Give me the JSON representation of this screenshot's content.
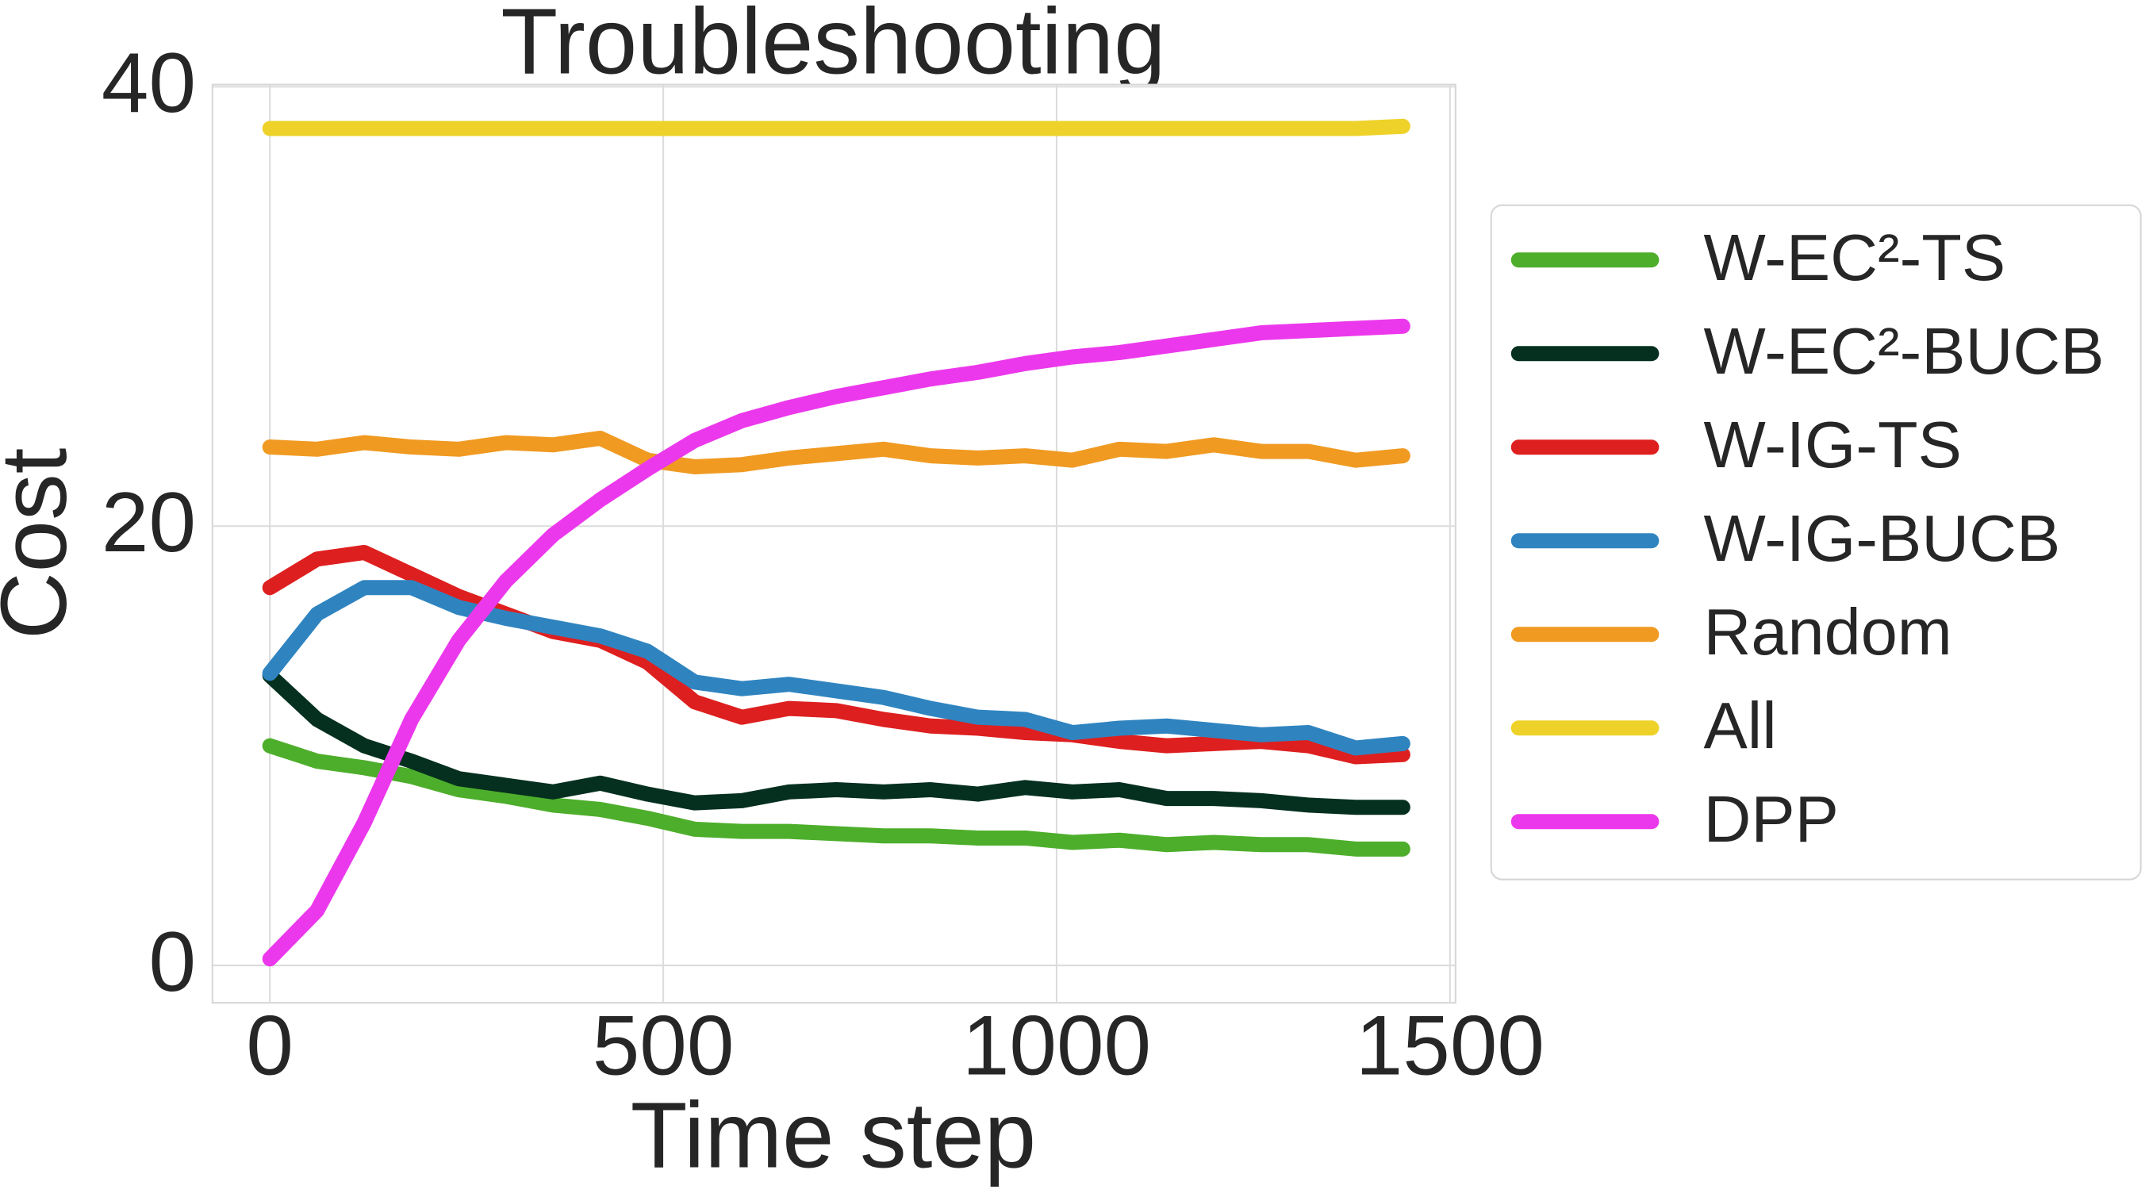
{
  "chart_data": {
    "type": "line",
    "title": "Troubleshooting",
    "x_label": "Time step",
    "y_label": "Cost",
    "x": [
      0,
      60,
      120,
      180,
      240,
      300,
      360,
      420,
      480,
      540,
      600,
      660,
      720,
      780,
      840,
      900,
      960,
      1020,
      1080,
      1140,
      1200,
      1260,
      1320,
      1380,
      1440
    ],
    "series": [
      {
        "name": "W-EC²-TS",
        "color": "#4dae2b",
        "values": [
          10.0,
          9.3,
          9.0,
          8.6,
          8.0,
          7.7,
          7.3,
          7.1,
          6.7,
          6.2,
          6.1,
          6.1,
          6.0,
          5.9,
          5.9,
          5.8,
          5.8,
          5.6,
          5.7,
          5.5,
          5.6,
          5.5,
          5.5,
          5.3,
          5.3
        ]
      },
      {
        "name": "W-EC²-BUCB",
        "color": "#05301f",
        "values": [
          13.2,
          11.2,
          10.0,
          9.3,
          8.5,
          8.2,
          7.9,
          8.3,
          7.8,
          7.4,
          7.5,
          7.9,
          8.0,
          7.9,
          8.0,
          7.8,
          8.1,
          7.9,
          8.0,
          7.6,
          7.6,
          7.5,
          7.3,
          7.2,
          7.2
        ]
      },
      {
        "name": "W-IG-TS",
        "color": "#de1f1f",
        "values": [
          17.2,
          18.5,
          18.8,
          17.8,
          16.8,
          16.0,
          15.2,
          14.8,
          13.8,
          12.0,
          11.3,
          11.7,
          11.6,
          11.2,
          10.9,
          10.8,
          10.6,
          10.5,
          10.2,
          10.0,
          10.1,
          10.2,
          10.0,
          9.5,
          9.6
        ]
      },
      {
        "name": "W-IG-BUCB",
        "color": "#2f84c0",
        "values": [
          13.3,
          16.0,
          17.2,
          17.2,
          16.3,
          15.8,
          15.4,
          15.0,
          14.3,
          12.9,
          12.6,
          12.8,
          12.5,
          12.2,
          11.7,
          11.3,
          11.2,
          10.6,
          10.8,
          10.9,
          10.7,
          10.5,
          10.6,
          9.9,
          10.1
        ]
      },
      {
        "name": "Random",
        "color": "#f09a22",
        "values": [
          23.6,
          23.5,
          23.8,
          23.6,
          23.5,
          23.8,
          23.7,
          24.0,
          23.0,
          22.7,
          22.8,
          23.1,
          23.3,
          23.5,
          23.2,
          23.1,
          23.2,
          23.0,
          23.5,
          23.4,
          23.7,
          23.4,
          23.4,
          23.0,
          23.2
        ]
      },
      {
        "name": "All",
        "color": "#eed22a",
        "values": [
          38.1,
          38.1,
          38.1,
          38.1,
          38.1,
          38.1,
          38.1,
          38.1,
          38.1,
          38.1,
          38.1,
          38.1,
          38.1,
          38.1,
          38.1,
          38.1,
          38.1,
          38.1,
          38.1,
          38.1,
          38.1,
          38.1,
          38.1,
          38.1,
          38.2
        ]
      },
      {
        "name": "DPP",
        "color": "#ec38ec",
        "values": [
          0.3,
          2.5,
          6.5,
          11.2,
          14.8,
          17.5,
          19.6,
          21.2,
          22.6,
          23.9,
          24.8,
          25.4,
          25.9,
          26.3,
          26.7,
          27.0,
          27.4,
          27.7,
          27.9,
          28.2,
          28.5,
          28.8,
          28.9,
          29.0,
          29.1
        ]
      }
    ],
    "xlim": [
      -73,
      1507
    ],
    "ylim": [
      -1.7,
      40.1
    ],
    "xticks": [
      0,
      500,
      1000,
      1500
    ],
    "yticks": [
      0,
      20,
      40
    ],
    "grid": true,
    "legend": "outside right"
  }
}
